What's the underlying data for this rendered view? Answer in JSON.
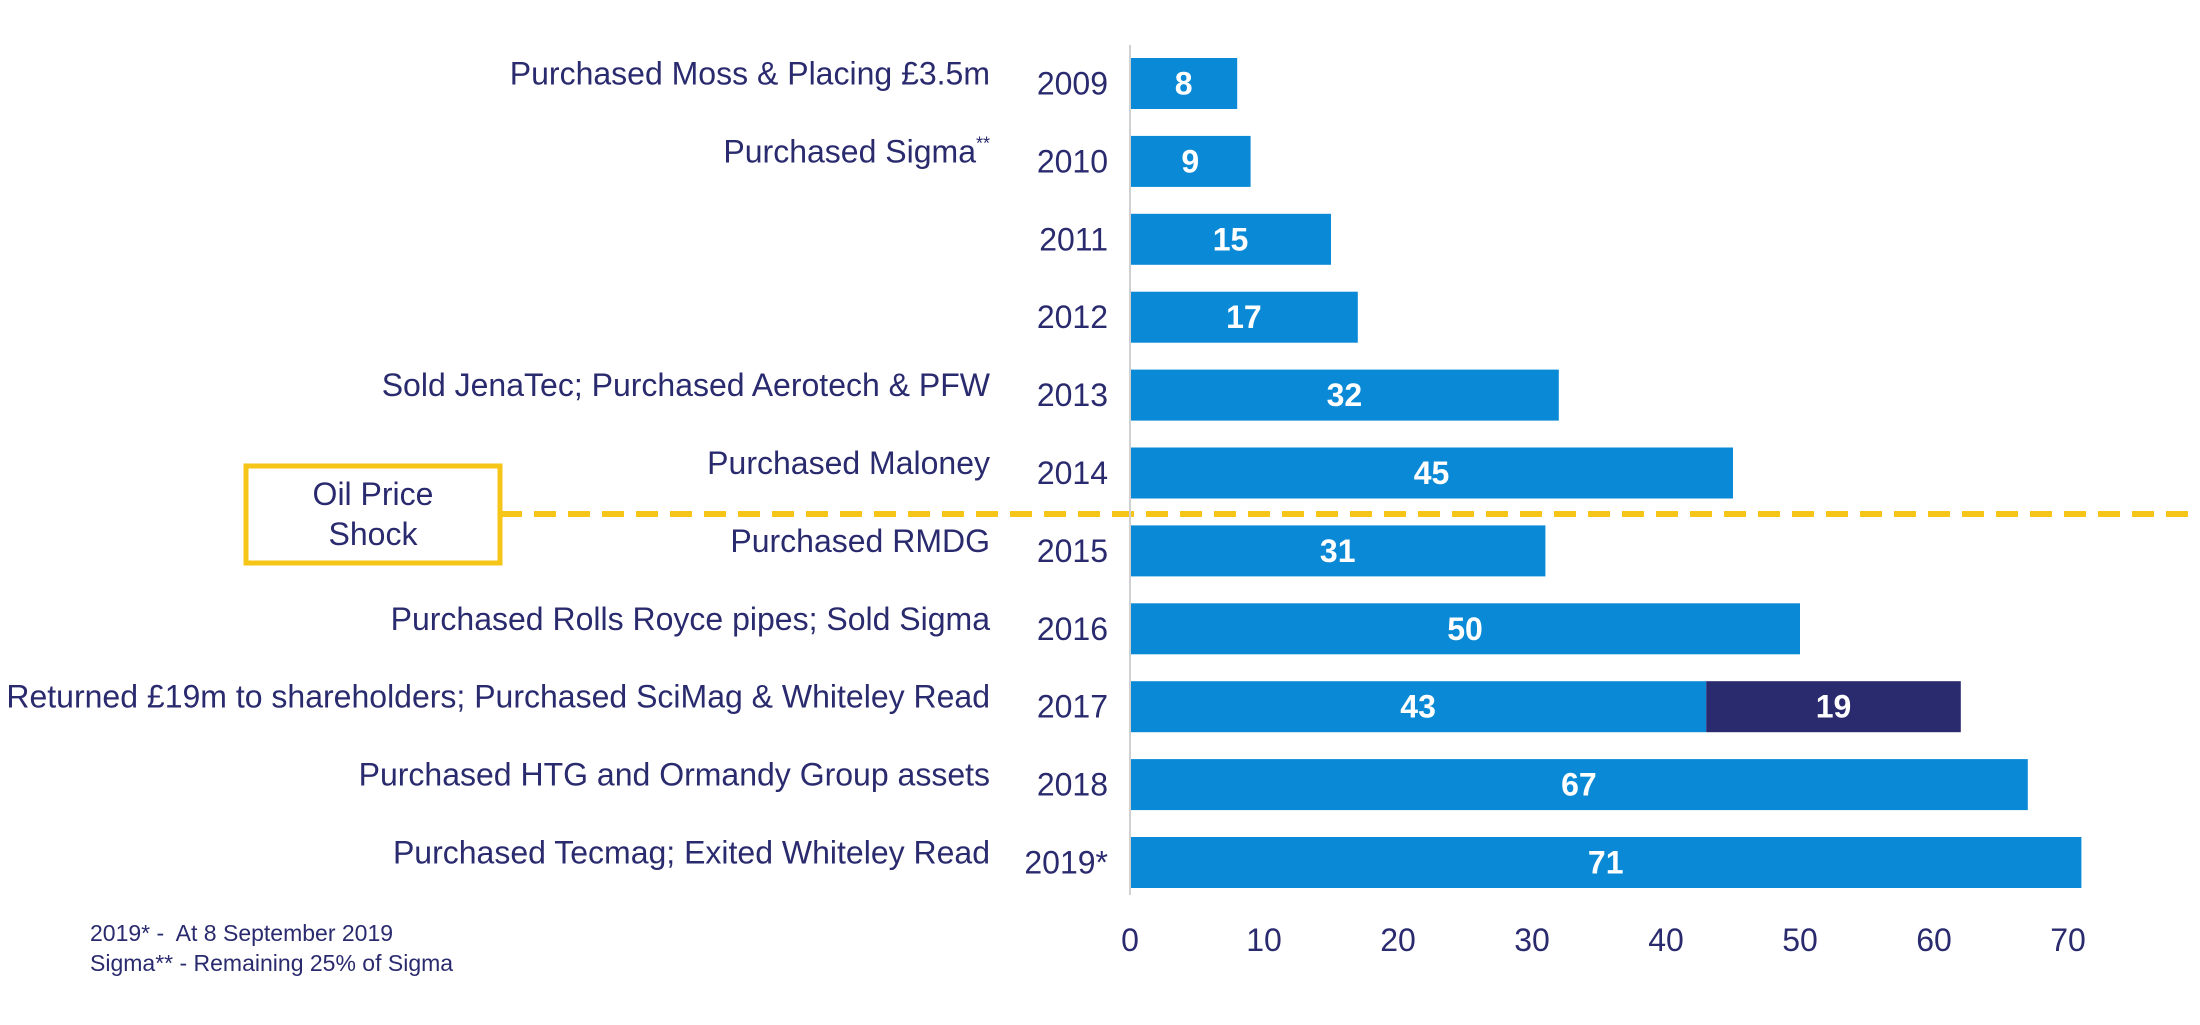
{
  "chart_data": {
    "type": "bar",
    "orientation": "horizontal",
    "stacked": true,
    "categories": [
      "2009",
      "2010",
      "2011",
      "2012",
      "2013",
      "2014",
      "2015",
      "2016",
      "2017",
      "2018",
      "2019*"
    ],
    "series": [
      {
        "values": [
          8,
          9,
          15,
          17,
          32,
          45,
          31,
          50,
          43,
          67,
          71
        ]
      },
      {
        "values": [
          null,
          null,
          null,
          null,
          null,
          null,
          null,
          null,
          19,
          null,
          null
        ]
      }
    ],
    "annotations": [
      {
        "category": "2009",
        "text": "Purchased Moss & Placing £3.5m",
        "superscript": ""
      },
      {
        "category": "2010",
        "text": "Purchased Sigma",
        "superscript": "**"
      },
      {
        "category": "2011",
        "text": "",
        "superscript": ""
      },
      {
        "category": "2012",
        "text": "",
        "superscript": ""
      },
      {
        "category": "2013",
        "text": "Sold JenaTec; Purchased Aerotech & PFW",
        "superscript": ""
      },
      {
        "category": "2014",
        "text": "Purchased Maloney",
        "superscript": ""
      },
      {
        "category": "2015",
        "text": "Purchased RMDG",
        "superscript": ""
      },
      {
        "category": "2016",
        "text": "Purchased Rolls Royce pipes; Sold Sigma",
        "superscript": ""
      },
      {
        "category": "2017",
        "text": "Returned £19m to shareholders; Purchased SciMag & Whiteley Read",
        "superscript": ""
      },
      {
        "category": "2018",
        "text": "Purchased HTG and Ormandy Group assets",
        "superscript": ""
      },
      {
        "category": "2019*",
        "text": "Purchased Tecmag; Exited Whiteley Read",
        "superscript": ""
      }
    ],
    "xlim": [
      0,
      70
    ],
    "xticks": [
      0,
      10,
      20,
      30,
      40,
      50,
      60,
      70
    ],
    "grid": false,
    "colors": {
      "primary": "#0a8ad6",
      "secondary": "#2a2a6e",
      "text": "#2a2a6e",
      "label": "#ffffff",
      "shock": "#f5c518"
    },
    "shock_marker": {
      "between": [
        "2014",
        "2015"
      ],
      "label_line1": "Oil Price",
      "label_line2": "Shock"
    }
  },
  "footnotes": [
    "2019* -  At 8 September 2019",
    "Sigma** - Remaining 25% of Sigma"
  ]
}
